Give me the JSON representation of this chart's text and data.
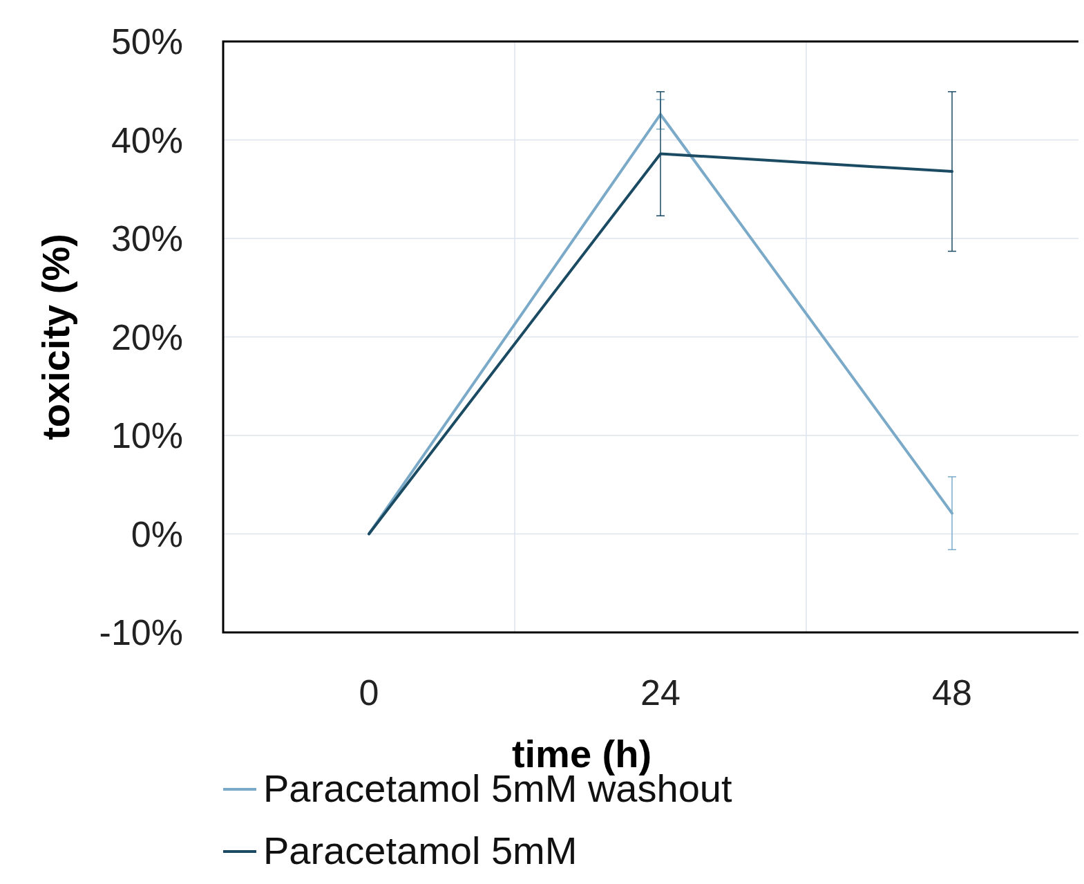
{
  "chart_data": {
    "type": "line",
    "xlabel": "time (h)",
    "ylabel": "toxicity (%)",
    "categories": [
      "0",
      "24",
      "48"
    ],
    "ylim": [
      -10,
      50
    ],
    "yticks": [
      {
        "value": -10,
        "label": "-10%"
      },
      {
        "value": 0,
        "label": "0%"
      },
      {
        "value": 10,
        "label": "10%"
      },
      {
        "value": 20,
        "label": "20%"
      },
      {
        "value": 30,
        "label": "30%"
      },
      {
        "value": 40,
        "label": "40%"
      },
      {
        "value": 50,
        "label": "50%"
      }
    ],
    "grid": true,
    "legend": "bottom",
    "marker": "none",
    "line_style": "solid",
    "series": [
      {
        "name": "Paracetamol 5mM washout",
        "color": "#7aaac8",
        "values": [
          0,
          42.6,
          2.1
        ],
        "errors": [
          null,
          1.5,
          3.7
        ]
      },
      {
        "name": "Paracetamol 5mM",
        "color": "#1b4a63",
        "values": [
          0,
          38.6,
          36.8
        ],
        "errors": [
          null,
          6.3,
          8.1
        ]
      }
    ]
  }
}
